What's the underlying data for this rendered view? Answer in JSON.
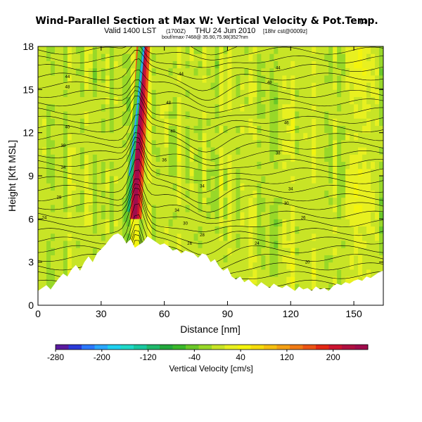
{
  "header": {
    "title": "Wind-Parallel Section at Max W: Vertical Velocity & Pot.Temp.",
    "copyright": "(C)",
    "valid_line": "Valid 1400 LST",
    "valid_utc": "(1700Z)",
    "valid_date": "THU 24 Jun 2010",
    "run_info": "[18hr cst@0009z]",
    "line3": "bouf/rmax-7468@ 35.90,75.98(352?nm"
  },
  "chart_data": {
    "type": "heatmap",
    "title": "Wind-Parallel Section at Max W: Vertical Velocity & Pot.Temp.",
    "xlabel": "Distance [nm]",
    "ylabel": "Height [Kft MSL]",
    "xlim": [
      0,
      164
    ],
    "ylim": [
      0,
      18
    ],
    "xticks": [
      "0",
      "30",
      "60",
      "90",
      "120",
      "150"
    ],
    "yticks": [
      "0",
      "3",
      "6",
      "9",
      "12",
      "15",
      "18"
    ],
    "field": "Vertical Velocity [cm/s]",
    "overlay": "Potential temperature contours",
    "colorbar": {
      "label": "Vertical Velocity [cm/s]",
      "min": -280,
      "max": 260,
      "ticks": [
        "-280",
        "-200",
        "-120",
        "-40",
        "40",
        "120",
        "200"
      ],
      "colors": [
        "#5a1aa0",
        "#2a3ad8",
        "#2b78ff",
        "#2aa8ff",
        "#1ed0f0",
        "#1fd9c8",
        "#18c8a0",
        "#1eb86a",
        "#22a83c",
        "#3ab82a",
        "#6ac828",
        "#98d828",
        "#c8e426",
        "#e8f020",
        "#f4f40e",
        "#f6dc0c",
        "#f6c010",
        "#f4a014",
        "#f07a14",
        "#ec5414",
        "#e42814",
        "#cc1430",
        "#b01040",
        "#a00c4c"
      ]
    },
    "terrain_profile_kft": [
      [
        0,
        1.0
      ],
      [
        2,
        1.2
      ],
      [
        4,
        1.4
      ],
      [
        6,
        1.1
      ],
      [
        8,
        1.5
      ],
      [
        10,
        1.9
      ],
      [
        12,
        2.2
      ],
      [
        14,
        2.0
      ],
      [
        16,
        2.5
      ],
      [
        18,
        2.8
      ],
      [
        20,
        2.4
      ],
      [
        22,
        3.0
      ],
      [
        24,
        3.4
      ],
      [
        26,
        3.0
      ],
      [
        28,
        3.6
      ],
      [
        30,
        3.9
      ],
      [
        32,
        4.2
      ],
      [
        34,
        4.6
      ],
      [
        36,
        4.9
      ],
      [
        38,
        5.0
      ],
      [
        40,
        4.8
      ],
      [
        42,
        4.3
      ],
      [
        44,
        4.6
      ],
      [
        46,
        4.0
      ],
      [
        48,
        4.2
      ],
      [
        50,
        4.4
      ],
      [
        52,
        4.8
      ],
      [
        54,
        4.6
      ],
      [
        56,
        4.4
      ],
      [
        58,
        4.2
      ],
      [
        60,
        4.3
      ],
      [
        62,
        4.1
      ],
      [
        64,
        3.8
      ],
      [
        66,
        3.9
      ],
      [
        68,
        3.6
      ],
      [
        70,
        3.8
      ],
      [
        72,
        3.7
      ],
      [
        74,
        3.6
      ],
      [
        76,
        3.3
      ],
      [
        78,
        3.6
      ],
      [
        80,
        3.5
      ],
      [
        82,
        3.0
      ],
      [
        84,
        3.2
      ],
      [
        86,
        2.7
      ],
      [
        88,
        2.4
      ],
      [
        90,
        2.6
      ],
      [
        92,
        2.0
      ],
      [
        94,
        1.8
      ],
      [
        96,
        2.0
      ],
      [
        98,
        1.6
      ],
      [
        100,
        1.8
      ],
      [
        102,
        1.5
      ],
      [
        104,
        1.3
      ],
      [
        106,
        1.6
      ],
      [
        108,
        1.4
      ],
      [
        110,
        1.2
      ],
      [
        112,
        1.5
      ],
      [
        114,
        1.3
      ],
      [
        116,
        1.2
      ],
      [
        118,
        1.4
      ],
      [
        120,
        1.2
      ],
      [
        122,
        1.0
      ],
      [
        124,
        1.3
      ],
      [
        126,
        1.1
      ],
      [
        128,
        1.2
      ],
      [
        130,
        1.0
      ],
      [
        132,
        1.3
      ],
      [
        134,
        1.1
      ],
      [
        136,
        1.2
      ],
      [
        138,
        1.0
      ],
      [
        140,
        1.3
      ],
      [
        142,
        1.5
      ],
      [
        144,
        1.4
      ],
      [
        146,
        1.6
      ],
      [
        148,
        1.5
      ],
      [
        150,
        1.7
      ],
      [
        152,
        1.8
      ],
      [
        154,
        1.7
      ],
      [
        156,
        2.0
      ],
      [
        158,
        1.9
      ],
      [
        160,
        2.1
      ],
      [
        162,
        2.3
      ],
      [
        164,
        2.4
      ]
    ],
    "updraft": {
      "x_center_nm": 46,
      "x_top_nm": 50,
      "top_kft": 18,
      "bottom_kft": 6.0,
      "peak_cm_s": 240
    },
    "downdraft": {
      "x_center_nm": 48,
      "x_top_nm": 52,
      "top_kft": 18,
      "bottom_kft": 9.0,
      "min_cm_s": -200
    },
    "theta_contours_k": [
      {
        "label": "24",
        "x": 3,
        "y": 6.0
      },
      {
        "label": "28",
        "x": 10,
        "y": 7.4
      },
      {
        "label": "34",
        "x": 12,
        "y": 9.5
      },
      {
        "label": "38",
        "x": 12,
        "y": 11.0
      },
      {
        "label": "40",
        "x": 14,
        "y": 12.3
      },
      {
        "label": "44",
        "x": 14,
        "y": 15.8
      },
      {
        "label": "48",
        "x": 14,
        "y": 15.1
      },
      {
        "label": "40",
        "x": 64,
        "y": 12.0
      },
      {
        "label": "36",
        "x": 60,
        "y": 10.0
      },
      {
        "label": "34",
        "x": 78,
        "y": 8.2
      },
      {
        "label": "34",
        "x": 66,
        "y": 6.5
      },
      {
        "label": "30",
        "x": 70,
        "y": 5.6
      },
      {
        "label": "26",
        "x": 72,
        "y": 4.2
      },
      {
        "label": "28",
        "x": 78,
        "y": 4.8
      },
      {
        "label": "44",
        "x": 68,
        "y": 16.0
      },
      {
        "label": "48",
        "x": 62,
        "y": 14.0
      },
      {
        "label": "44",
        "x": 114,
        "y": 16.4
      },
      {
        "label": "48",
        "x": 110,
        "y": 15.4
      },
      {
        "label": "46",
        "x": 118,
        "y": 12.6
      },
      {
        "label": "38",
        "x": 114,
        "y": 10.5
      },
      {
        "label": "34",
        "x": 120,
        "y": 8.0
      },
      {
        "label": "30",
        "x": 118,
        "y": 7.0
      },
      {
        "label": "26",
        "x": 126,
        "y": 6.0
      },
      {
        "label": "24",
        "x": 104,
        "y": 4.2
      },
      {
        "label": "20",
        "x": 128,
        "y": 2.9
      }
    ]
  }
}
